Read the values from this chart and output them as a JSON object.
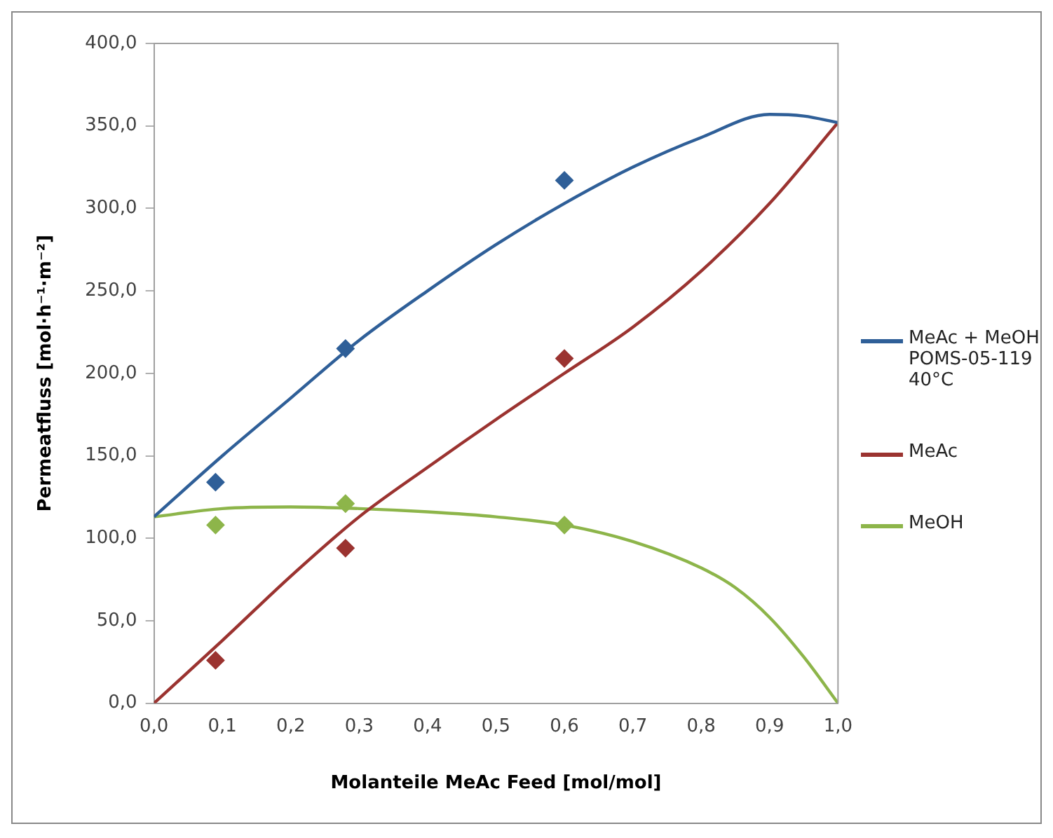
{
  "chart_data": {
    "type": "line",
    "xlabel": "Molanteile MeAc Feed [mol/mol]",
    "ylabel": "Permeatfluss [mol·h⁻¹·m⁻²]",
    "xlim": [
      0,
      1
    ],
    "xticks": [
      {
        "value": 0,
        "label": "0,0"
      },
      {
        "value": 0.1,
        "label": "0,1"
      },
      {
        "value": 0.2,
        "label": "0,2"
      },
      {
        "value": 0.3,
        "label": "0,3"
      },
      {
        "value": 0.4,
        "label": "0,4"
      },
      {
        "value": 0.5,
        "label": "0,5"
      },
      {
        "value": 0.6,
        "label": "0,6"
      },
      {
        "value": 0.7,
        "label": "0,7"
      },
      {
        "value": 0.8,
        "label": "0,8"
      },
      {
        "value": 0.9,
        "label": "0,9"
      },
      {
        "value": 1,
        "label": "1,0"
      }
    ],
    "ylim": [
      0,
      400
    ],
    "yticks": [
      {
        "value": 0,
        "label": "0,0"
      },
      {
        "value": 50,
        "label": "50,0"
      },
      {
        "value": 100,
        "label": "100,0"
      },
      {
        "value": 150,
        "label": "150,0"
      },
      {
        "value": 200,
        "label": "200,0"
      },
      {
        "value": 250,
        "label": "250,0"
      },
      {
        "value": 300,
        "label": "300,0"
      },
      {
        "value": 350,
        "label": "350,0"
      },
      {
        "value": 400,
        "label": "400,0"
      }
    ],
    "grid": false,
    "legend": "right",
    "series": [
      {
        "name": "MeAc + MeOH\nPOMS-05-119\n40°C",
        "marker": "none",
        "color": "#2f5f98",
        "x": [
          0,
          0.1,
          0.2,
          0.3,
          0.4,
          0.5,
          0.6,
          0.7,
          0.8,
          0.9,
          0.95,
          1
        ],
        "values": [
          113,
          150,
          185,
          220,
          250,
          278,
          303,
          325,
          343,
          357,
          356,
          352
        ]
      },
      {
        "name": "MeAc",
        "marker": "none",
        "color": "#9b3330",
        "x": [
          0,
          0.1,
          0.2,
          0.3,
          0.4,
          0.5,
          0.6,
          0.7,
          0.8,
          0.9,
          1
        ],
        "values": [
          0,
          38,
          77,
          113,
          143,
          172,
          200,
          228,
          262,
          303,
          352
        ]
      },
      {
        "name": "MeOH",
        "marker": "none",
        "color": "#8db54a",
        "x": [
          0,
          0.1,
          0.2,
          0.3,
          0.4,
          0.5,
          0.6,
          0.7,
          0.8,
          0.85,
          0.9,
          0.95,
          1
        ],
        "values": [
          113,
          118,
          119,
          118,
          116,
          113,
          108,
          98,
          82,
          70,
          52,
          28,
          0
        ]
      },
      {
        "type": "scatter",
        "marker": "diamond",
        "color": "#2f5f98",
        "x": [
          0.09,
          0.28,
          0.6
        ],
        "values": [
          134,
          215,
          317
        ]
      },
      {
        "type": "scatter",
        "marker": "diamond",
        "color": "#9b3330",
        "x": [
          0.09,
          0.28,
          0.6
        ],
        "values": [
          26,
          94,
          209
        ]
      },
      {
        "type": "scatter",
        "marker": "diamond",
        "color": "#8db54a",
        "x": [
          0.09,
          0.28,
          0.6
        ],
        "values": [
          108,
          121,
          108
        ]
      }
    ]
  }
}
